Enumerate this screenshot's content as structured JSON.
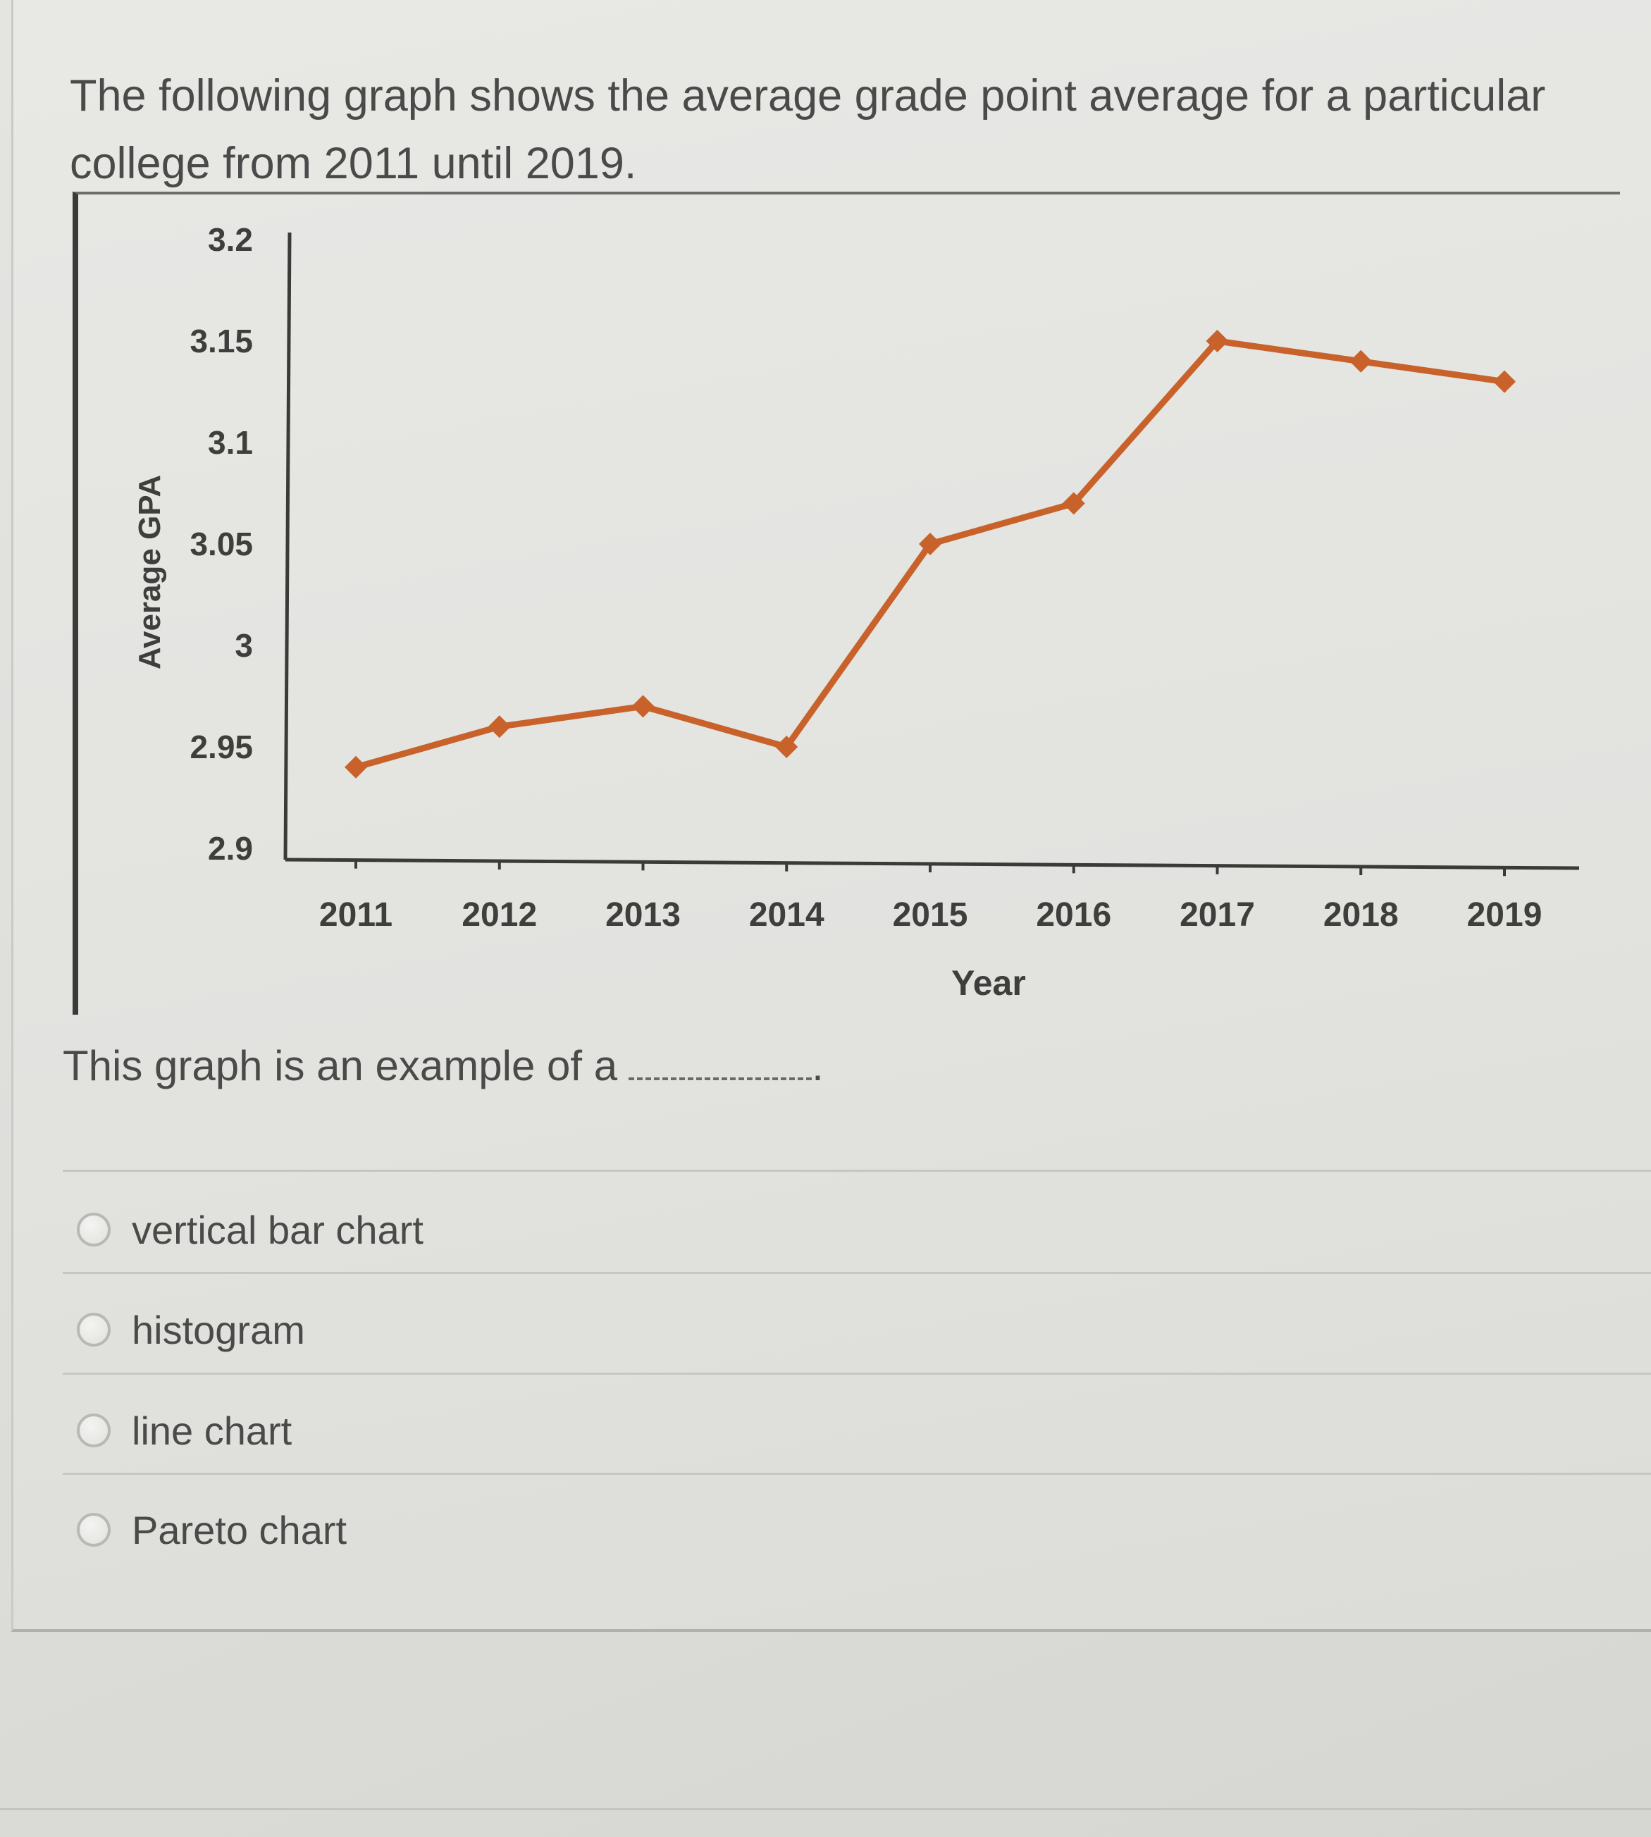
{
  "question": {
    "text": "The following graph shows the average grade point average for a particular college from 2011 until 2019.",
    "prompt": "This graph is an example of a",
    "blank_suffix": "."
  },
  "options": [
    {
      "label": "vertical bar chart",
      "selected": false
    },
    {
      "label": "histogram",
      "selected": false
    },
    {
      "label": "line chart",
      "selected": false
    },
    {
      "label": "Pareto chart",
      "selected": false
    }
  ],
  "colors": {
    "line": "#c8622a",
    "axis": "#3a3a38",
    "text": "#4a4a4a"
  },
  "chart_data": {
    "type": "line",
    "title": "",
    "xlabel": "Year",
    "ylabel": "Average GPA",
    "categories": [
      "2011",
      "2012",
      "2013",
      "2014",
      "2015",
      "2016",
      "2017",
      "2018",
      "2019"
    ],
    "series": [
      {
        "values": [
          2.94,
          2.96,
          2.97,
          2.95,
          3.05,
          3.07,
          3.15,
          3.14,
          3.13
        ]
      }
    ],
    "ylim": [
      2.9,
      3.2
    ],
    "yticks": [
      "2.9",
      "2.95",
      "3",
      "3.05",
      "3.1",
      "3.15",
      "3.2"
    ],
    "grid": false,
    "markers": "diamond"
  }
}
